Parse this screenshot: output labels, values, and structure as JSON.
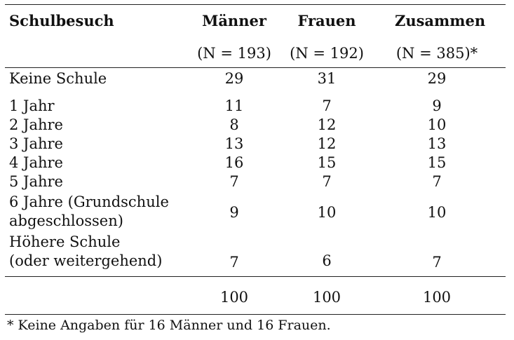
{
  "table": {
    "header": {
      "label": "Schulbesuch",
      "columns": [
        {
          "title": "Männer",
          "n": "(N = 193)"
        },
        {
          "title": "Frauen",
          "n": "(N = 192)"
        },
        {
          "title": "Zusammen",
          "n": "(N = 385)*"
        }
      ]
    },
    "rows": [
      {
        "label": "Keine Schule",
        "values": [
          "29",
          "31",
          "29"
        ]
      },
      {
        "label": "1 Jahr",
        "values": [
          "11",
          "7",
          "9"
        ]
      },
      {
        "label": "2 Jahre",
        "values": [
          "8",
          "12",
          "10"
        ]
      },
      {
        "label": "3 Jahre",
        "values": [
          "13",
          "12",
          "13"
        ]
      },
      {
        "label": "4 Jahre",
        "values": [
          "16",
          "15",
          "15"
        ]
      },
      {
        "label": "5 Jahre",
        "values": [
          "7",
          "7",
          "7"
        ]
      },
      {
        "label_line1": "6 Jahre (Grundschule",
        "label_line2": "abgeschlossen)",
        "values": [
          "9",
          "10",
          "10"
        ]
      },
      {
        "label_line1": "Höhere Schule",
        "label_line2": "(oder weitergehend)",
        "values": [
          "7",
          "6",
          "7"
        ]
      }
    ],
    "totals": [
      "100",
      "100",
      "100"
    ],
    "footnote": "* Keine Angaben für 16 Männer und 16 Frauen."
  }
}
